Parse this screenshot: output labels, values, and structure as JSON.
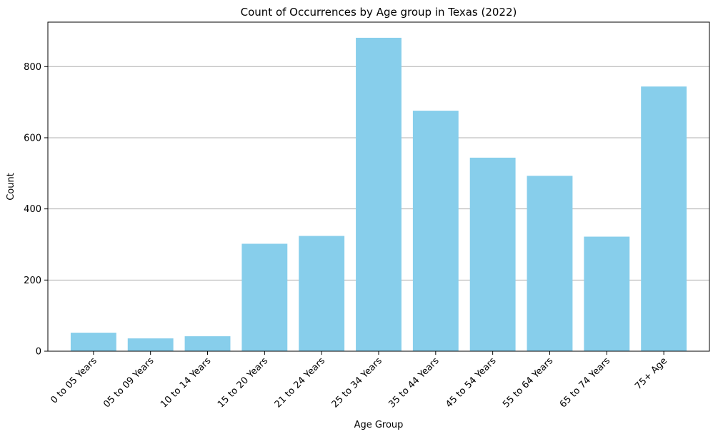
{
  "chart_data": {
    "type": "bar",
    "title": "Count of Occurrences by Age group in Texas (2022)",
    "xlabel": "Age Group",
    "ylabel": "Count",
    "categories": [
      "0 to 05 Years",
      "05 to 09 Years",
      "10 to 14 Years",
      "15 to 20 Years",
      "21 to 24 Years",
      "25 to 34 Years",
      "35 to 44 Years",
      "45 to 54 Years",
      "55 to 64 Years",
      "65 to 74 Years",
      "75+ Age"
    ],
    "values": [
      52,
      36,
      42,
      302,
      324,
      881,
      676,
      544,
      493,
      322,
      744
    ],
    "ylim": [
      0,
      925
    ],
    "yticks": [
      0,
      200,
      400,
      600,
      800
    ],
    "grid": "y-axis only",
    "bar_color": "#87CEEB",
    "grid_color": "#b0b0b0",
    "x_tick_rotation": 45
  }
}
